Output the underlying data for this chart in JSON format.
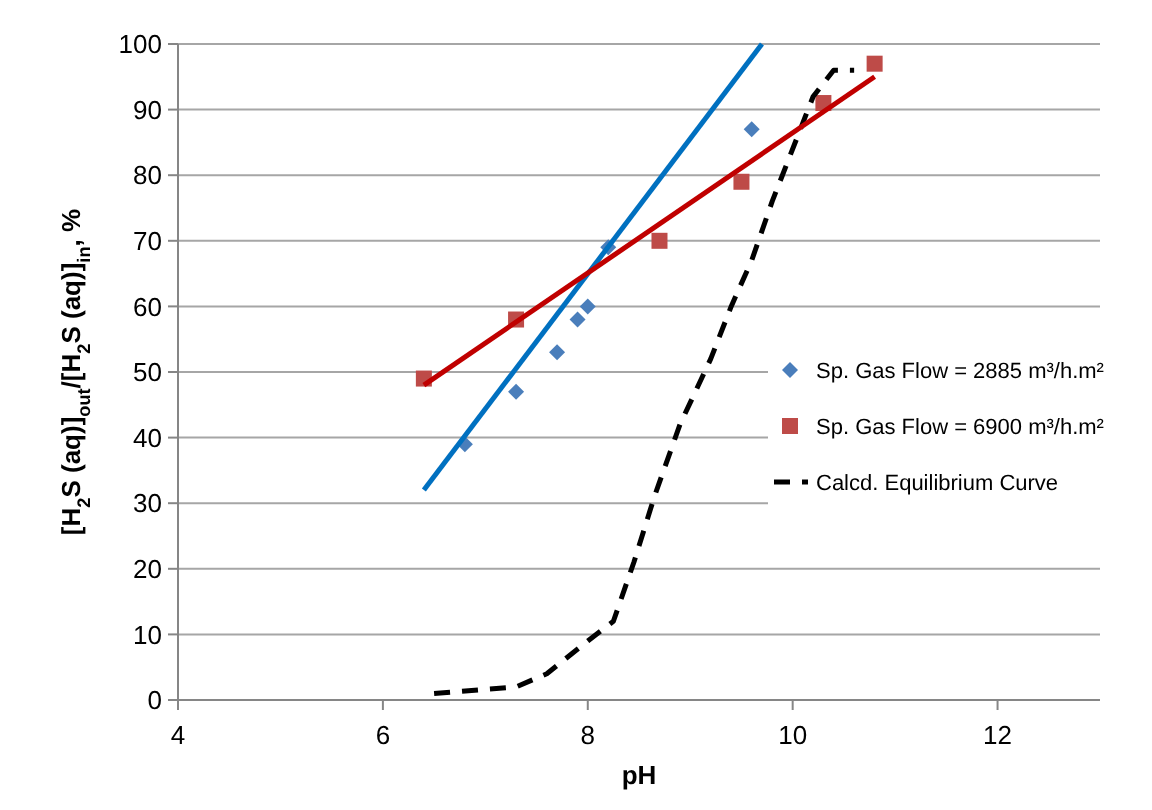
{
  "chart_data": {
    "type": "scatter",
    "xlabel": "pH",
    "ylabel": "[H$_{2}$S (aq)]$_{out}$/[H$_{2}$S (aq)]$_{in}$, %",
    "xlim": [
      4,
      13
    ],
    "xticks": [
      4,
      6,
      8,
      10,
      12
    ],
    "ylim": [
      0,
      100
    ],
    "yticks": [
      0,
      10,
      20,
      30,
      40,
      50,
      60,
      70,
      80,
      90,
      100
    ],
    "grid": "y",
    "legend": "right",
    "series": [
      {
        "name": "Sp. Gas Flow = 2885 m³/h.m²",
        "marker": "diamond",
        "color": "#4a7ebb",
        "x": [
          6.8,
          7.3,
          7.7,
          7.9,
          8.0,
          8.2,
          9.6
        ],
        "values": [
          39,
          47,
          53,
          58,
          60,
          69,
          87
        ]
      },
      {
        "name": "Sp. Gas Flow = 6900 m³/h.m²",
        "marker": "square",
        "color": "#be4b48",
        "x": [
          6.4,
          7.3,
          8.7,
          9.5,
          10.3,
          10.8
        ],
        "values": [
          49,
          58,
          70,
          79,
          91,
          97
        ]
      },
      {
        "name": "Calcd. Equilibrium Curve",
        "type": "line",
        "marker": "none",
        "line_style": "dashed",
        "color": "#000000",
        "x": [
          6.5,
          7.3,
          7.6,
          8.0,
          8.25,
          8.45,
          8.65,
          8.9,
          9.2,
          9.4,
          9.6,
          9.8,
          10.05,
          10.2,
          10.4,
          10.6
        ],
        "values": [
          1,
          2,
          4,
          9,
          12,
          21,
          31,
          42,
          52,
          60,
          67,
          76,
          86,
          92,
          96,
          96
        ]
      },
      {
        "type": "line",
        "marker": "none",
        "line_style": "solid",
        "color": "#0070c0",
        "x": [
          6.4,
          9.7
        ],
        "values": [
          32,
          100
        ]
      },
      {
        "type": "line",
        "marker": "none",
        "line_style": "solid",
        "color": "#c00000",
        "x": [
          6.4,
          10.8
        ],
        "values": [
          48,
          95
        ]
      }
    ]
  }
}
